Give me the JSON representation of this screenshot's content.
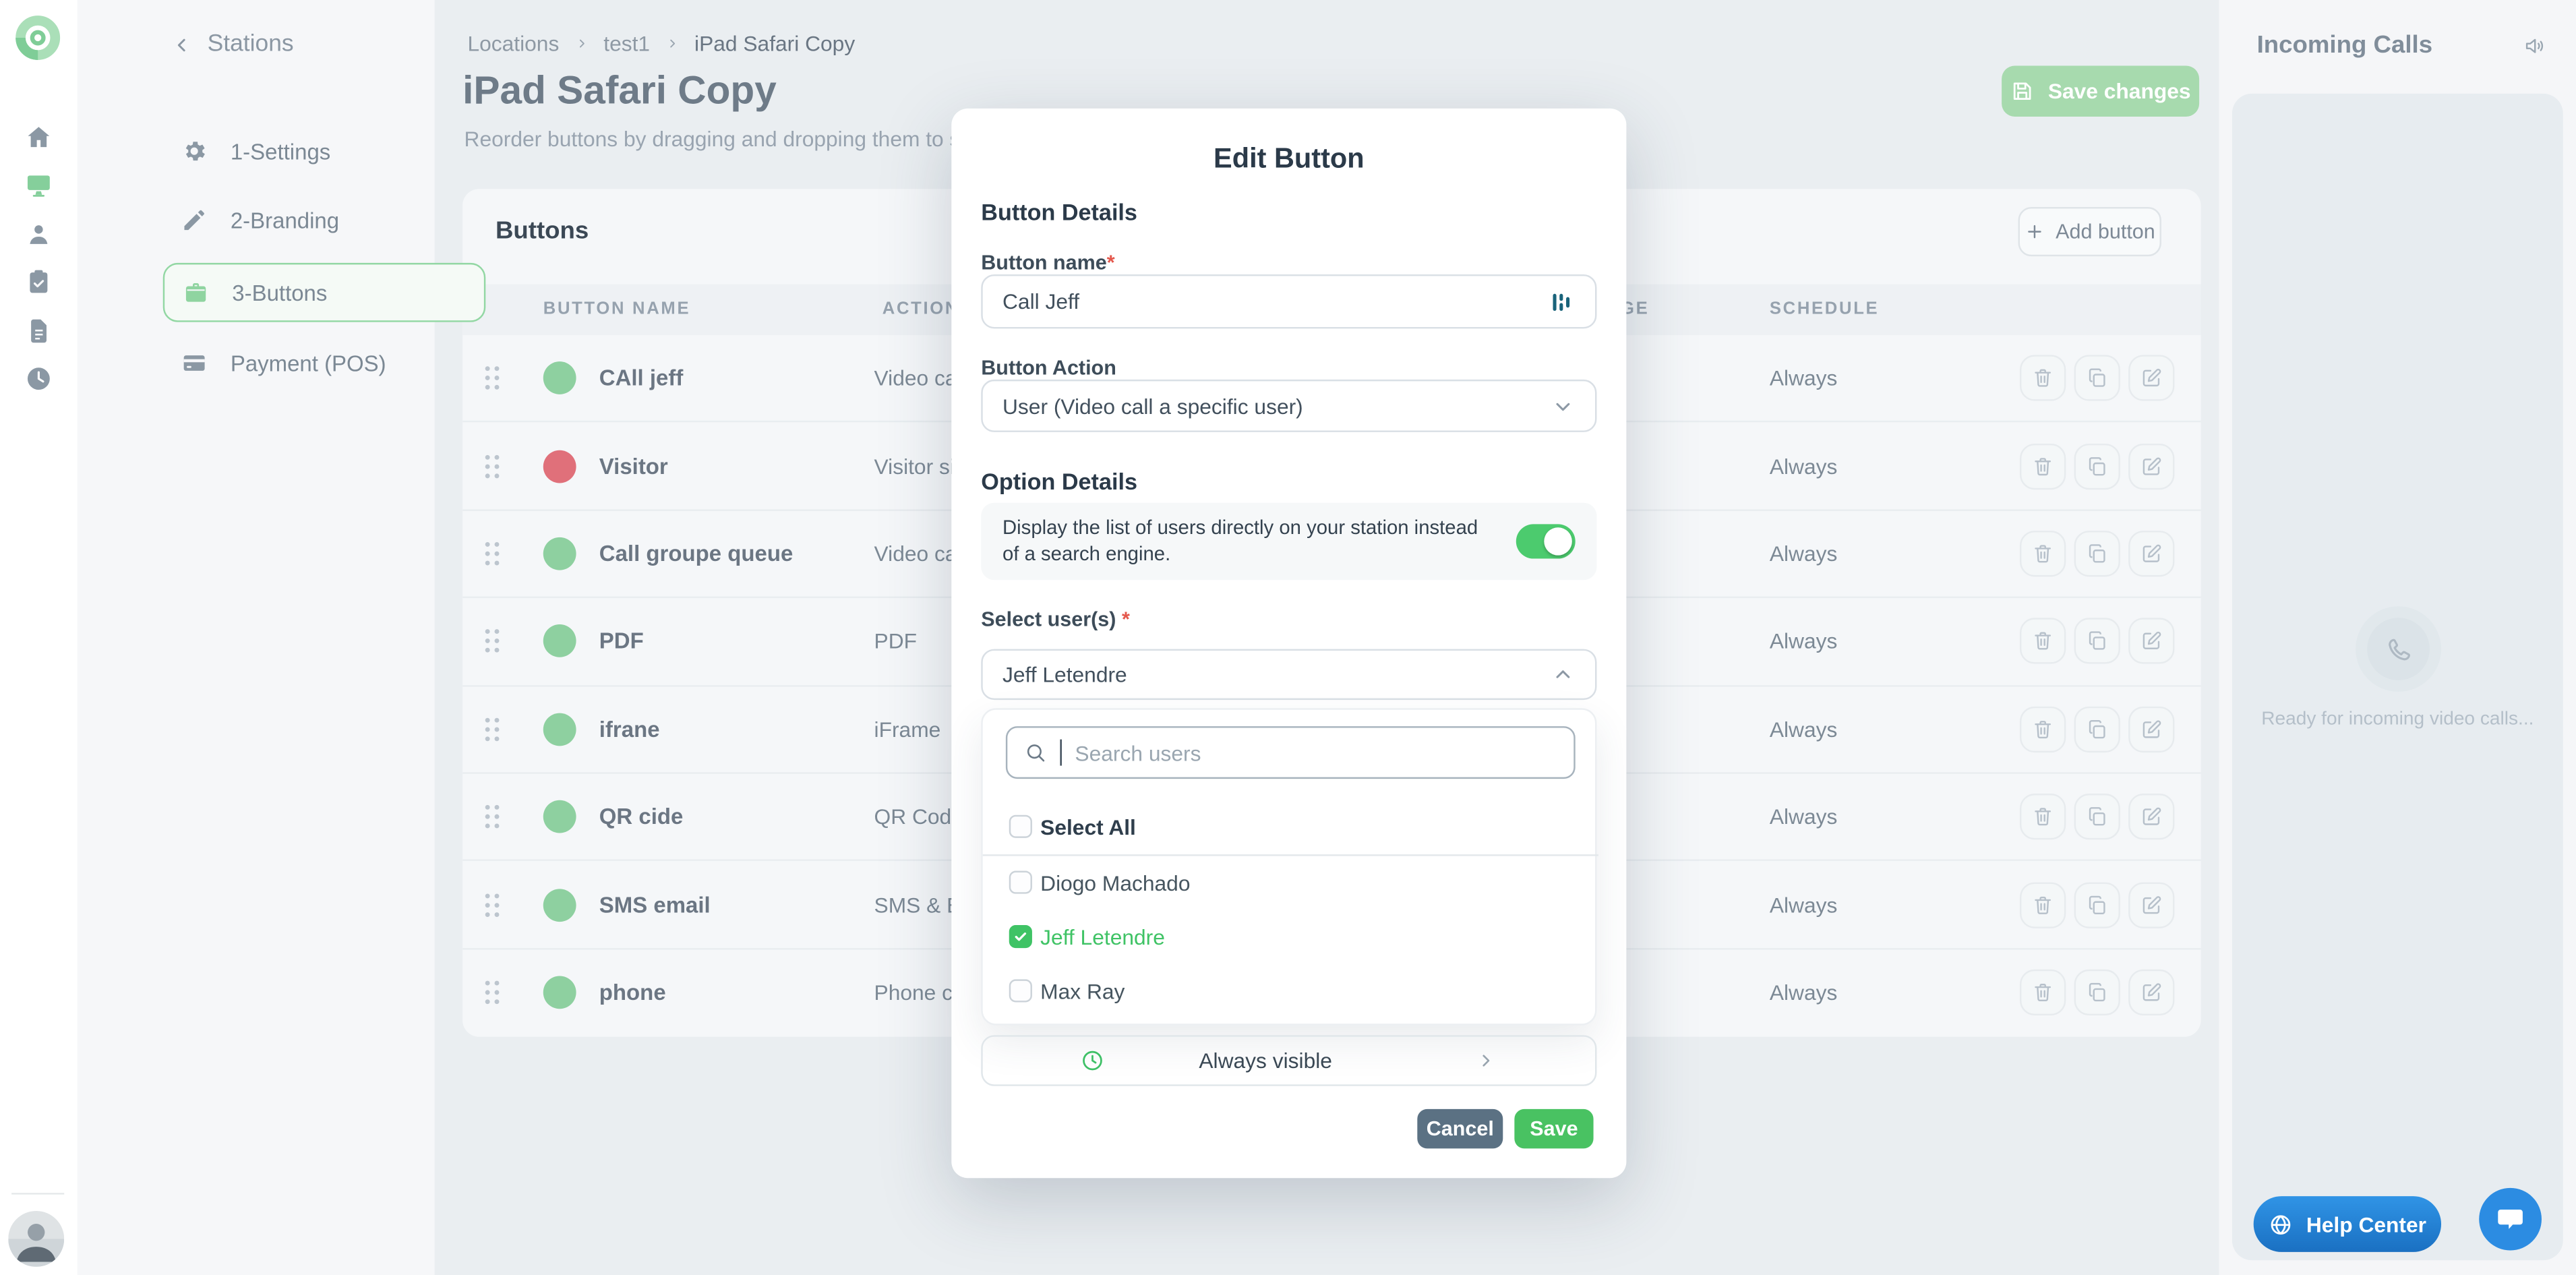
{
  "rail": {
    "logo_icon": "brand-logo-icon",
    "items": [
      {
        "icon": "home-icon",
        "active": false
      },
      {
        "icon": "monitor-icon",
        "active": true
      },
      {
        "icon": "person-icon",
        "active": false
      },
      {
        "icon": "clipboard-icon",
        "active": false
      },
      {
        "icon": "document-icon",
        "active": false
      },
      {
        "icon": "clock-icon",
        "active": false
      }
    ]
  },
  "sidebar": {
    "back_label": "Stations",
    "items": [
      {
        "icon": "gear-icon",
        "label": "1-Settings",
        "active": false
      },
      {
        "icon": "pencil-icon",
        "label": "2-Branding",
        "active": false
      },
      {
        "icon": "briefcase-icon",
        "label": "3-Buttons",
        "active": true
      },
      {
        "icon": "credit-card-icon",
        "label": "Payment (POS)",
        "active": false
      }
    ]
  },
  "header": {
    "breadcrumb": [
      "Locations",
      "test1",
      "iPad Safari Copy"
    ],
    "title": "iPad Safari Copy",
    "subtitle": "Reorder buttons by dragging and dropping them to set the",
    "save_changes_label": "Save changes"
  },
  "buttons_card": {
    "title": "Buttons",
    "add_button_label": "Add button",
    "columns": [
      "BUTTON NAME",
      "ACTION",
      "IMAGE",
      "SCHEDULE"
    ],
    "rows": [
      {
        "name": "CAll jeff",
        "dot_color": "#8ed0a0",
        "action": "Video call",
        "schedule": "Always"
      },
      {
        "name": "Visitor",
        "dot_color": "#e0707a",
        "action": "Visitor sign in",
        "schedule": "Always"
      },
      {
        "name": "Call groupe queue",
        "dot_color": "#8ed0a0",
        "action": "Video call",
        "schedule": "Always"
      },
      {
        "name": "PDF",
        "dot_color": "#8ed0a0",
        "action": "PDF",
        "schedule": "Always"
      },
      {
        "name": "ifrane",
        "dot_color": "#8ed0a0",
        "action": "iFrame",
        "schedule": "Always"
      },
      {
        "name": "QR cide",
        "dot_color": "#8ed0a0",
        "action": "QR Code",
        "schedule": "Always"
      },
      {
        "name": "SMS email",
        "dot_color": "#8ed0a0",
        "action": "SMS & Email",
        "schedule": "Always"
      },
      {
        "name": "phone",
        "dot_color": "#8ed0a0",
        "action": "Phone call",
        "schedule": "Always"
      }
    ],
    "row_action_icons": [
      "trash-icon",
      "copy-icon",
      "edit-icon"
    ]
  },
  "incoming": {
    "title": "Incoming Calls",
    "speaker_icon": "speaker-icon",
    "ready_text": "Ready for incoming video calls...",
    "help_center_label": "Help Center"
  },
  "modal": {
    "title": "Edit Button",
    "section_button_details": "Button Details",
    "button_name_label": "Button name",
    "button_name_value": "Call Jeff",
    "button_action_label": "Button Action",
    "button_action_value": "User (Video call a specific user)",
    "section_option_details": "Option Details",
    "toggle_text": "Display the list of users directly on your station instead of a search engine.",
    "toggle_on": true,
    "select_users_label": "Select user(s)",
    "selected_user": "Jeff Letendre",
    "search_placeholder": "Search users",
    "select_all_label": "Select All",
    "users": [
      {
        "name": "Diogo Machado",
        "checked": false
      },
      {
        "name": "Jeff Letendre",
        "checked": true
      },
      {
        "name": "Max Ray",
        "checked": false
      }
    ],
    "visibility_label": "Always visible",
    "cancel_label": "Cancel",
    "save_label": "Save"
  },
  "colors": {
    "brand_green": "#8ed0a0",
    "active_border_green": "#92d7a3",
    "toggle_green": "#4ccb6e",
    "checkbox_green": "#3fc365",
    "save_green": "#49c262",
    "save_changes_green": "#a7daae",
    "cancel_slate": "#5b7183",
    "danger_red_dot": "#e0707a",
    "required_red": "#e4574b",
    "help_blue": "#2c8ce2",
    "teal_icon": "#19637a",
    "page_bg": "#eaeef1",
    "card_bg": "#f5f7f9"
  }
}
